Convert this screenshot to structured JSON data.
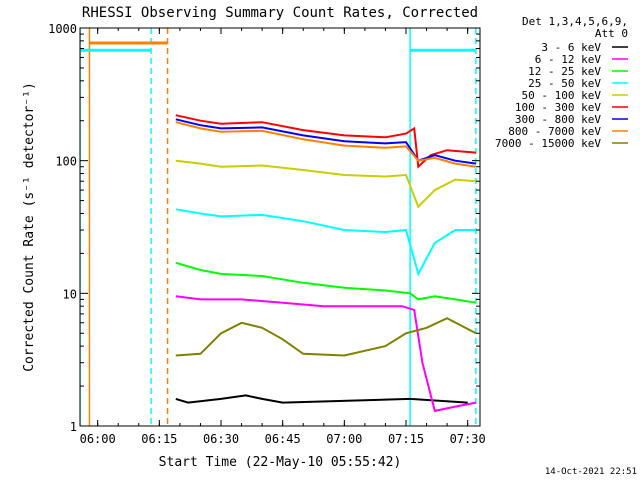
{
  "chart_data": {
    "type": "line",
    "title": "RHESSI Observing Summary Count Rates, Corrected",
    "xlabel": "Start Time (22-May-10 05:55:42)",
    "ylabel": "Corrected Count Rate (s⁻¹ detector⁻¹)",
    "y_scale": "log",
    "ylim": [
      1,
      1000
    ],
    "xlim": [
      "05:55:42",
      "07:33:00"
    ],
    "x_ticks": [
      "06:00",
      "06:15",
      "06:30",
      "06:45",
      "07:00",
      "07:15",
      "07:30"
    ],
    "y_ticks": [
      "1",
      "10",
      "100",
      "1000"
    ],
    "legend_header": [
      "Det 1,3,4,5,6,9,",
      "Att 0"
    ],
    "legend_position": "right",
    "timestamp": "14-Oct-2021 22:51",
    "series": [
      {
        "name": "3 - 6 keV",
        "color": "#000000",
        "points": [
          [
            "06:19",
            1.6
          ],
          [
            "06:22",
            1.5
          ],
          [
            "06:30",
            1.6
          ],
          [
            "06:36",
            1.7
          ],
          [
            "06:40",
            1.6
          ],
          [
            "06:45",
            1.5
          ],
          [
            "07:16",
            1.6
          ],
          [
            "07:30",
            1.5
          ]
        ]
      },
      {
        "name": "6 - 12 keV",
        "color": "#ff00ff",
        "points": [
          [
            "06:19",
            9.5
          ],
          [
            "06:25",
            9.0
          ],
          [
            "06:35",
            9.0
          ],
          [
            "06:45",
            8.5
          ],
          [
            "06:55",
            8.0
          ],
          [
            "07:05",
            8.0
          ],
          [
            "07:14",
            8.0
          ],
          [
            "07:17",
            7.5
          ],
          [
            "07:19",
            3.0
          ],
          [
            "07:22",
            1.3
          ],
          [
            "07:27",
            1.4
          ],
          [
            "07:32",
            1.5
          ]
        ]
      },
      {
        "name": "12 - 25 keV",
        "color": "#00ff00",
        "points": [
          [
            "06:19",
            17
          ],
          [
            "06:25",
            15
          ],
          [
            "06:30",
            14
          ],
          [
            "06:40",
            13.5
          ],
          [
            "06:50",
            12
          ],
          [
            "07:00",
            11
          ],
          [
            "07:10",
            10.5
          ],
          [
            "07:16",
            10
          ],
          [
            "07:18",
            9
          ],
          [
            "07:22",
            9.5
          ],
          [
            "07:27",
            9
          ],
          [
            "07:32",
            8.5
          ]
        ]
      },
      {
        "name": "25 - 50 keV",
        "color": "#00ffff",
        "points": [
          [
            "06:19",
            43
          ],
          [
            "06:25",
            40
          ],
          [
            "06:30",
            38
          ],
          [
            "06:40",
            39
          ],
          [
            "06:50",
            35
          ],
          [
            "07:00",
            30
          ],
          [
            "07:10",
            29
          ],
          [
            "07:15",
            30
          ],
          [
            "07:18",
            14
          ],
          [
            "07:22",
            24
          ],
          [
            "07:27",
            30
          ],
          [
            "07:32",
            30
          ]
        ]
      },
      {
        "name": "50 - 100 keV",
        "color": "#cccc00",
        "points": [
          [
            "06:19",
            100
          ],
          [
            "06:25",
            95
          ],
          [
            "06:30",
            90
          ],
          [
            "06:40",
            92
          ],
          [
            "06:50",
            85
          ],
          [
            "07:00",
            78
          ],
          [
            "07:10",
            76
          ],
          [
            "07:15",
            78
          ],
          [
            "07:18",
            45
          ],
          [
            "07:22",
            60
          ],
          [
            "07:27",
            72
          ],
          [
            "07:32",
            70
          ]
        ]
      },
      {
        "name": "100 - 300 keV",
        "color": "#ff0000",
        "points": [
          [
            "06:19",
            220
          ],
          [
            "06:25",
            200
          ],
          [
            "06:30",
            190
          ],
          [
            "06:40",
            195
          ],
          [
            "06:50",
            170
          ],
          [
            "07:00",
            155
          ],
          [
            "07:10",
            150
          ],
          [
            "07:15",
            160
          ],
          [
            "07:17",
            175
          ],
          [
            "07:18",
            90
          ],
          [
            "07:21",
            110
          ],
          [
            "07:25",
            120
          ],
          [
            "07:32",
            115
          ]
        ]
      },
      {
        "name": "300 - 800 keV",
        "color": "#0000ff",
        "points": [
          [
            "06:19",
            205
          ],
          [
            "06:25",
            185
          ],
          [
            "06:30",
            175
          ],
          [
            "06:40",
            178
          ],
          [
            "06:50",
            155
          ],
          [
            "07:00",
            140
          ],
          [
            "07:10",
            135
          ],
          [
            "07:15",
            138
          ],
          [
            "07:18",
            100
          ],
          [
            "07:22",
            110
          ],
          [
            "07:27",
            100
          ],
          [
            "07:32",
            95
          ]
        ]
      },
      {
        "name": "800 - 7000 keV",
        "color": "#ff8000",
        "points": [
          [
            "06:19",
            195
          ],
          [
            "06:25",
            175
          ],
          [
            "06:30",
            165
          ],
          [
            "06:40",
            168
          ],
          [
            "06:50",
            145
          ],
          [
            "07:00",
            130
          ],
          [
            "07:10",
            125
          ],
          [
            "07:15",
            128
          ],
          [
            "07:18",
            100
          ],
          [
            "07:22",
            105
          ],
          [
            "07:27",
            95
          ],
          [
            "07:32",
            90
          ]
        ]
      },
      {
        "name": "7000 - 15000 keV",
        "color": "#808000",
        "points": [
          [
            "06:19",
            3.4
          ],
          [
            "06:25",
            3.5
          ],
          [
            "06:30",
            5.0
          ],
          [
            "06:35",
            6.0
          ],
          [
            "06:40",
            5.5
          ],
          [
            "06:45",
            4.5
          ],
          [
            "06:50",
            3.5
          ],
          [
            "07:00",
            3.4
          ],
          [
            "07:10",
            4.0
          ],
          [
            "07:15",
            5.0
          ],
          [
            "07:20",
            5.5
          ],
          [
            "07:25",
            6.5
          ],
          [
            "07:32",
            5.0
          ]
        ]
      }
    ],
    "markers": [
      {
        "color": "#00ffff",
        "style": "solid",
        "time": "05:55:42"
      },
      {
        "color": "#ff8000",
        "style": "solid",
        "time": "05:58"
      },
      {
        "color": "#00ffff",
        "style": "dashed",
        "time": "06:13"
      },
      {
        "color": "#ff8000",
        "style": "dashed",
        "time": "06:17"
      },
      {
        "color": "#00ffff",
        "style": "solid",
        "time": "07:16"
      },
      {
        "color": "#00ffff",
        "style": "dashed",
        "time": "07:32"
      }
    ],
    "bars": [
      {
        "color": "#00ffff",
        "from": "05:55:42",
        "to": "06:13",
        "value": 680
      },
      {
        "color": "#ff8000",
        "from": "05:58",
        "to": "06:17",
        "value": 770
      },
      {
        "color": "#00ffff",
        "from": "07:16",
        "to": "07:32",
        "value": 680
      }
    ]
  }
}
